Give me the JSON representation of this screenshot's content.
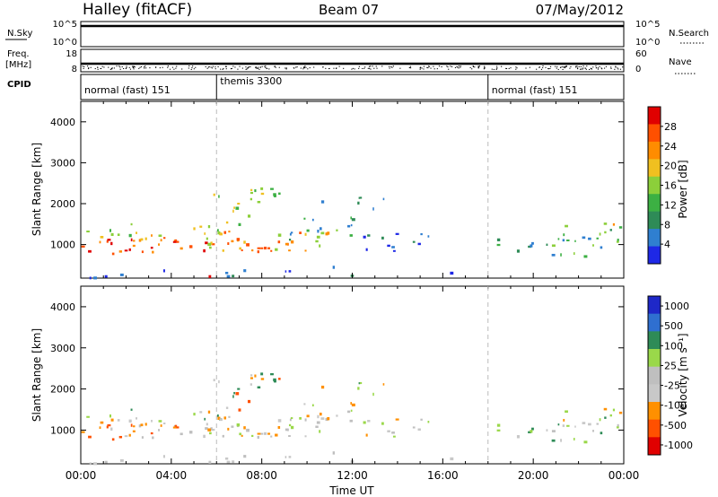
{
  "header": {
    "station": "Halley (fitACF)",
    "beam": "Beam 07",
    "date": "07/May/2012"
  },
  "left_labels": {
    "nsky": "N.Sky",
    "freq_line1": "Freq.",
    "freq_line2": "[MHz]",
    "cpid": "CPID"
  },
  "right_labels": {
    "nsearch": "N.Search",
    "nave": "Nave"
  },
  "noise_axis": {
    "left_top": "10^5",
    "left_bottom": "10^0",
    "right_top": "10^5",
    "right_bottom": "10^0"
  },
  "freq_axis": {
    "left_ticks": [
      "18",
      "8"
    ],
    "right_ticks": [
      "60",
      "0"
    ]
  },
  "cpid_segments": [
    {
      "label": "normal (fast) 151",
      "start_hour": 0
    },
    {
      "label": "themis 3300",
      "start_hour": 6
    },
    {
      "label": "normal (fast) 151",
      "start_hour": 18
    }
  ],
  "colors": {
    "power": [
      "#1e28e6",
      "#2f7fd0",
      "#2e8b57",
      "#3cb043",
      "#8ccf3a",
      "#f0c020",
      "#ff8c00",
      "#ff5000",
      "#e00000"
    ],
    "velocity": [
      "#e00000",
      "#ff5000",
      "#ff9000",
      "#c8c8c8",
      "#bfbfbf",
      "#9ad84a",
      "#2e8b57",
      "#2f6fd0",
      "#1e28c8"
    ]
  },
  "chart_data": [
    {
      "type": "heatmap",
      "ylabel": "Slant Range [km]",
      "xlim": [
        "00:00",
        "00:00"
      ],
      "ylim": [
        180,
        4500
      ],
      "y_ticks": [
        1000,
        2000,
        3000,
        4000
      ],
      "x_ticks": [
        "00:00",
        "04:00",
        "08:00",
        "12:00",
        "16:00",
        "20:00",
        "00:00"
      ],
      "colorbar": {
        "label": "Power [dB]",
        "ticks": [
          "4",
          "8",
          "12",
          "16",
          "20",
          "24",
          "28"
        ]
      }
    },
    {
      "type": "heatmap",
      "ylabel": "Slant Range [km]",
      "xlabel": "Time UT",
      "xlim": [
        "00:00",
        "00:00"
      ],
      "ylim": [
        180,
        4500
      ],
      "y_ticks": [
        1000,
        2000,
        3000,
        4000
      ],
      "x_ticks": [
        "00:00",
        "04:00",
        "08:00",
        "12:00",
        "16:00",
        "20:00",
        "00:00"
      ],
      "colorbar": {
        "label": "Velocity [m s⁻¹]",
        "ticks": [
          "1000",
          "500",
          "100",
          "25",
          "-25",
          "-100",
          "-500",
          "-1000"
        ]
      }
    }
  ]
}
